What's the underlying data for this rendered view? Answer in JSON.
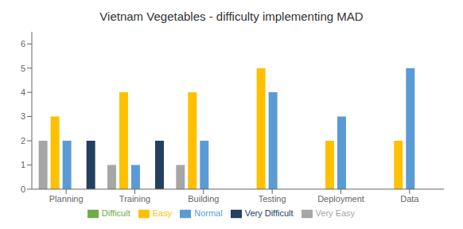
{
  "chart_data": {
    "type": "bar",
    "title": "Vietnam Vegetables - difficulty implementing MAD",
    "categories": [
      "Planning",
      "Training",
      "Building",
      "Testing",
      "Deployment",
      "Data"
    ],
    "series": [
      {
        "name": "Very Easy",
        "color": "#a6a6a6",
        "values": [
          2,
          1,
          1,
          0,
          0,
          0
        ]
      },
      {
        "name": "Easy",
        "color": "#ffc000",
        "values": [
          3,
          4,
          4,
          5,
          2,
          2
        ]
      },
      {
        "name": "Normal",
        "color": "#5b9bd5",
        "values": [
          2,
          1,
          2,
          4,
          3,
          5
        ]
      },
      {
        "name": "Difficult",
        "color": "#70ad47",
        "values": [
          0,
          0,
          0,
          0,
          0,
          0
        ]
      },
      {
        "name": "Very Difficult",
        "color": "#243f60",
        "values": [
          2,
          2,
          0,
          0,
          0,
          0
        ]
      }
    ],
    "ylim": [
      0,
      6.5
    ],
    "yticks": [
      0,
      1,
      2,
      3,
      4,
      5,
      6
    ],
    "grid": false,
    "legend": "bottom"
  }
}
